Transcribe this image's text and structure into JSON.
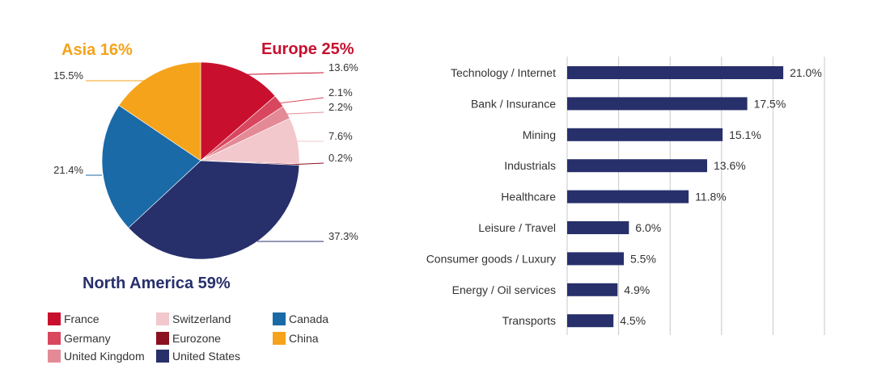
{
  "chart_data": [
    {
      "type": "pie",
      "regions": [
        {
          "label": "Europe 25%",
          "color": "#c8102e"
        },
        {
          "label": "Asia 16%",
          "color": "#f5a31a"
        },
        {
          "label": "North America 59%",
          "color": "#27306b"
        }
      ],
      "slices": [
        {
          "name": "France",
          "value": 13.6,
          "label": "13.6%",
          "color": "#c8102e"
        },
        {
          "name": "Germany",
          "value": 2.1,
          "label": "2.1%",
          "color": "#d9475e"
        },
        {
          "name": "United Kingdom",
          "value": 2.2,
          "label": "2.2%",
          "color": "#e48a97"
        },
        {
          "name": "Switzerland",
          "value": 7.6,
          "label": "7.6%",
          "color": "#f2c8cd"
        },
        {
          "name": "Eurozone",
          "value": 0.2,
          "label": "0.2%",
          "color": "#8b1020"
        },
        {
          "name": "United States",
          "value": 37.3,
          "label": "37.3%",
          "color": "#27306b"
        },
        {
          "name": "Canada",
          "value": 21.4,
          "label": "21.4%",
          "color": "#1a6aa8"
        },
        {
          "name": "China",
          "value": 15.5,
          "label": "15.5%",
          "color": "#f5a31a"
        }
      ],
      "legend": [
        [
          "France",
          "Germany",
          "United Kingdom"
        ],
        [
          "Switzerland",
          "Eurozone",
          "United States"
        ],
        [
          "Canada",
          "China"
        ]
      ]
    },
    {
      "type": "bar",
      "orientation": "horizontal",
      "categories": [
        "Technology / Internet",
        "Bank / Insurance",
        "Mining",
        "Industrials",
        "Healthcare",
        "Leisure / Travel",
        "Consumer goods / Luxury",
        "Energy / Oil services",
        "Transports"
      ],
      "values": [
        21.0,
        17.5,
        15.1,
        13.6,
        11.8,
        6.0,
        5.5,
        4.9,
        4.5
      ],
      "labels": [
        "21.0%",
        "17.5%",
        "15.1%",
        "13.6%",
        "11.8%",
        "6.0%",
        "5.5%",
        "4.9%",
        "4.5%"
      ],
      "xlim": [
        0,
        25
      ],
      "grid": true,
      "bar_color": "#27306b"
    }
  ]
}
